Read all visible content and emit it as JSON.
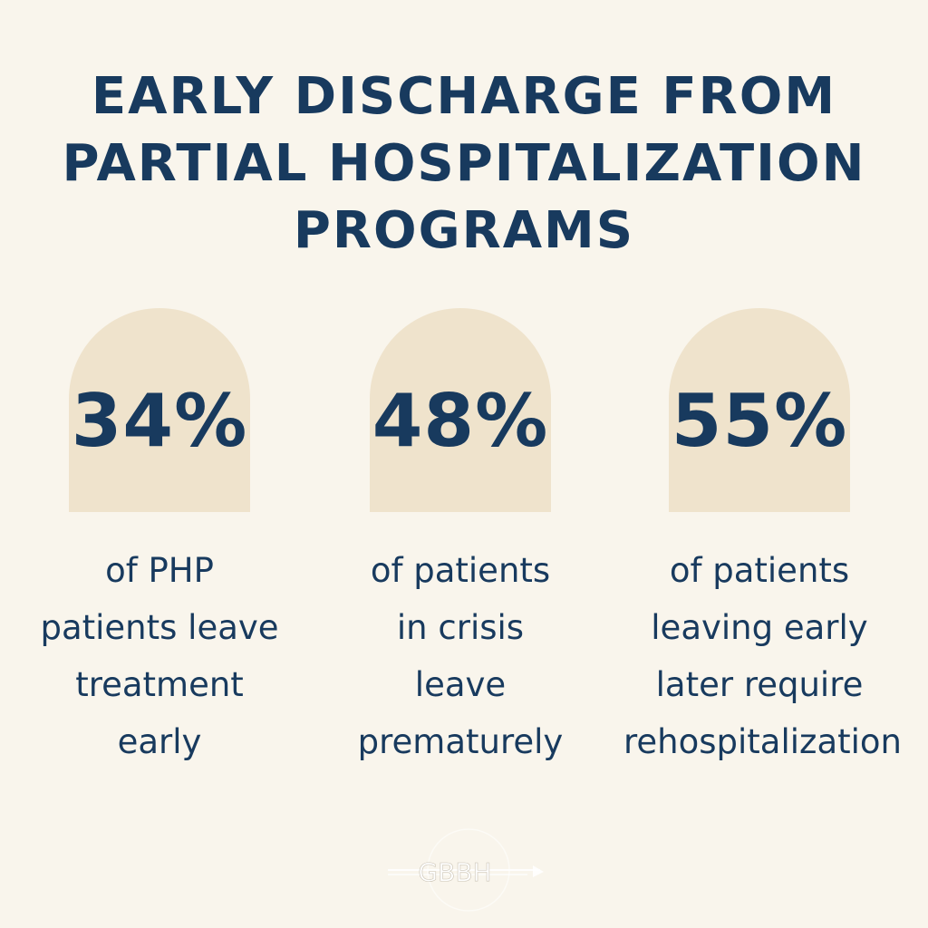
{
  "title": {
    "lines": [
      "EARLY DISCHARGE FROM",
      "PARTIAL HOSPITALIZATION",
      "PROGRAMS"
    ]
  },
  "stats": [
    {
      "value": "34%",
      "lines": [
        "of PHP",
        "patients leave",
        "treatment",
        "early"
      ]
    },
    {
      "value": "48%",
      "lines": [
        "of patients",
        "in crisis",
        "leave",
        "prematurely"
      ]
    },
    {
      "value": "55%",
      "lines": [
        "of patients",
        "leaving early",
        "later require",
        "rehospitalization"
      ]
    }
  ],
  "logo": {
    "text": "GBBH"
  },
  "colors": {
    "background": "#f9f5ec",
    "text": "#183a5e",
    "arch": "#efe3cc",
    "logo": "#ffffff"
  }
}
